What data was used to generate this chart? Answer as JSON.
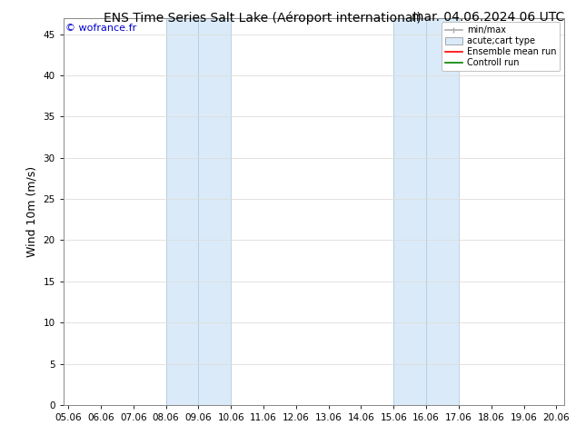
{
  "title_left": "ENS Time Series Salt Lake (Aéroport international)",
  "title_right": "mar. 04.06.2024 06 UTC",
  "ylabel": "Wind 10m (m/s)",
  "xlim_start": 4.85,
  "xlim_end": 20.25,
  "ylim_min": 0,
  "ylim_max": 47,
  "xtick_labels": [
    "05.06",
    "06.06",
    "07.06",
    "08.06",
    "09.06",
    "10.06",
    "11.06",
    "12.06",
    "13.06",
    "14.06",
    "15.06",
    "16.06",
    "17.06",
    "18.06",
    "19.06",
    "20.06"
  ],
  "xtick_positions": [
    5,
    6,
    7,
    8,
    9,
    10,
    11,
    12,
    13,
    14,
    15,
    16,
    17,
    18,
    19,
    20
  ],
  "ytick_positions": [
    0,
    5,
    10,
    15,
    20,
    25,
    30,
    35,
    40,
    45
  ],
  "shaded_block1": {
    "xmin": 8.0,
    "xmax": 10.0
  },
  "shaded_block2": {
    "xmin": 15.0,
    "xmax": 17.0
  },
  "shade_color": "#daeaf8",
  "vline_positions": [
    8.0,
    9.0,
    10.0,
    15.0,
    16.0,
    17.0
  ],
  "vline_color": "#b0cce0",
  "watermark_text": "© wofrance.fr",
  "watermark_color": "#0000cc",
  "legend_entries": [
    {
      "label": "min/max"
    },
    {
      "label": "acute;cart type"
    },
    {
      "label": "Ensemble mean run"
    },
    {
      "label": "Controll run"
    }
  ],
  "legend_colors": [
    "#aaaaaa",
    "#daeaf8",
    "red",
    "green"
  ],
  "bg_color": "#ffffff",
  "plot_bg_color": "#ffffff",
  "grid_color": "#dddddd",
  "spine_color": "#888888",
  "title_fontsize": 10,
  "ylabel_fontsize": 9,
  "tick_fontsize": 7.5,
  "watermark_fontsize": 8,
  "legend_fontsize": 7
}
